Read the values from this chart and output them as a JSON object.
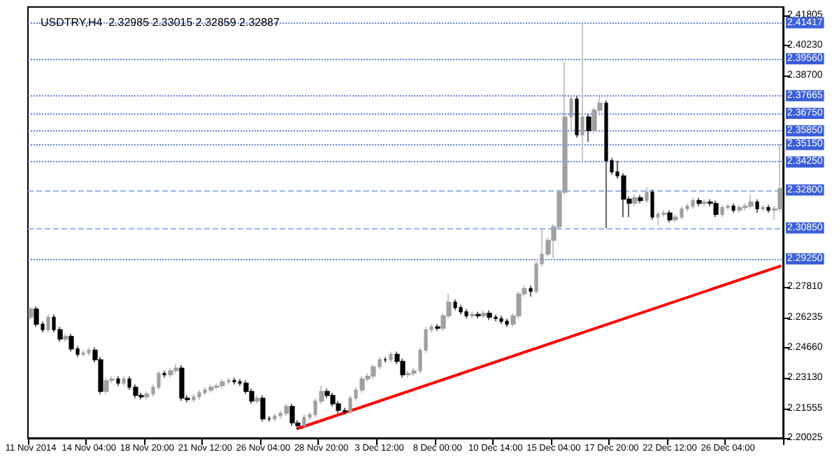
{
  "chart_data": {
    "type": "candlestick",
    "title": "USDTRY,H4  2.32985 2.33015 2.32859 2.32887",
    "categories": [
      "11 Nov 2014",
      null,
      null,
      null,
      null,
      null,
      null,
      null,
      null,
      null,
      "14 Nov 04:00",
      null,
      null,
      null,
      null,
      null,
      null,
      null,
      null,
      null,
      "18 Nov 20:00",
      null,
      null,
      null,
      null,
      null,
      null,
      null,
      null,
      null,
      "21 Nov 12:00",
      null,
      null,
      null,
      null,
      null,
      null,
      null,
      null,
      null,
      "26 Nov 04:00",
      null,
      null,
      null,
      null,
      null,
      null,
      null,
      null,
      null,
      "28 Nov 20:00",
      null,
      null,
      null,
      null,
      null,
      null,
      null,
      null,
      null,
      "3 Dec 12:00",
      null,
      null,
      null,
      null,
      null,
      null,
      null,
      null,
      null,
      "8 Dec 00:00",
      null,
      null,
      null,
      null,
      null,
      null,
      null,
      null,
      null,
      "10 Dec 14:00",
      null,
      null,
      null,
      null,
      null,
      null,
      null,
      null,
      null,
      "15 Dec 04:00",
      null,
      null,
      null,
      null,
      null,
      null,
      null,
      null,
      null,
      "17 Dec 20:00",
      null,
      null,
      null,
      null,
      null,
      null,
      null,
      null,
      null,
      "22 Dec 12:00",
      null,
      null,
      null,
      null,
      null,
      null,
      null,
      null,
      null,
      "26 Dec 04:00",
      null,
      null,
      null,
      null,
      null,
      null,
      null,
      null,
      null
    ],
    "series": [
      {
        "type": "candlestick",
        "colors": [
          "#a0a0a0",
          "#000000",
          "#000000",
          "#a0a0a0",
          "#000000",
          "#000000",
          "#a0a0a0",
          "#000000",
          "#000000",
          "#a0a0a0",
          "#a0a0a0",
          "#000000",
          "#000000",
          "#a0a0a0",
          "#a0a0a0",
          "#000000",
          "#a0a0a0",
          "#000000",
          "#000000",
          "#000000",
          "#a0a0a0",
          "#a0a0a0",
          "#a0a0a0",
          "#000000",
          "#a0a0a0",
          "#a0a0a0",
          "#000000",
          "#000000",
          "#a0a0a0",
          "#a0a0a0",
          "#a0a0a0",
          "#a0a0a0",
          "#a0a0a0",
          "#a0a0a0",
          "#a0a0a0",
          "#000000",
          "#000000",
          "#000000",
          "#000000",
          "#a0a0a0",
          "#000000",
          "#000000",
          "#a0a0a0",
          "#a0a0a0",
          "#a0a0a0",
          "#000000",
          "#000000",
          "#a0a0a0",
          "#a0a0a0",
          "#a0a0a0",
          "#a0a0a0",
          "#000000",
          "#000000",
          "#000000",
          "#000000",
          "#a0a0a0",
          "#a0a0a0",
          "#a0a0a0",
          "#a0a0a0",
          "#a0a0a0",
          "#a0a0a0",
          "#000000",
          "#a0a0a0",
          "#000000",
          "#000000",
          "#a0a0a0",
          "#a0a0a0",
          "#a0a0a0",
          "#a0a0a0",
          "#a0a0a0",
          "#000000",
          "#a0a0a0",
          "#a0a0a0",
          "#000000",
          "#000000",
          "#000000",
          "#a0a0a0",
          "#000000",
          "#a0a0a0",
          "#000000",
          "#000000",
          "#000000",
          "#000000",
          "#a0a0a0",
          "#a0a0a0",
          "#a0a0a0",
          "#000000",
          "#a0a0a0",
          "#a0a0a0",
          "#a0a0a0",
          "#a0a0a0",
          "#a0a0a0",
          "#a0a0a0",
          "#a0a0a0",
          "#000000",
          "#a0a0a0",
          "#000000",
          "#a0a0a0",
          "#a0a0a0",
          "#000000",
          "#000000",
          "#000000",
          "#000000",
          "#000000",
          "#a0a0a0",
          "#000000",
          "#a0a0a0",
          "#000000",
          "#a0a0a0",
          "#a0a0a0",
          "#000000",
          "#a0a0a0",
          "#a0a0a0",
          "#a0a0a0",
          "#a0a0a0",
          "#000000",
          "#a0a0a0",
          "#000000",
          "#000000",
          "#a0a0a0",
          "#a0a0a0",
          "#000000",
          "#a0a0a0",
          "#a0a0a0",
          "#a0a0a0",
          "#000000",
          "#a0a0a0",
          "#000000",
          "#a0a0a0",
          "#a0a0a0"
        ],
        "ohlc": [
          [
            2.2625,
            2.2681,
            2.2611,
            2.2667
          ],
          [
            2.2667,
            2.2681,
            2.2575,
            2.2589
          ],
          [
            2.2589,
            2.2603,
            2.2547,
            2.2561
          ],
          [
            2.2561,
            2.2639,
            2.2547,
            2.2625
          ],
          [
            2.2625,
            2.2639,
            2.2547,
            2.2561
          ],
          [
            2.2561,
            2.2575,
            2.2498,
            2.2512
          ],
          [
            2.2512,
            2.254,
            2.2498,
            2.2526
          ],
          [
            2.2526,
            2.254,
            2.2448,
            2.2462
          ],
          [
            2.2462,
            2.2476,
            2.242,
            2.2434
          ],
          [
            2.2434,
            2.2455,
            2.242,
            2.2441
          ],
          [
            2.2441,
            2.2469,
            2.2427,
            2.2455
          ],
          [
            2.2455,
            2.2469,
            2.2392,
            2.2406
          ],
          [
            2.2406,
            2.242,
            2.2229,
            2.2243
          ],
          [
            2.2243,
            2.2313,
            2.2229,
            2.2299
          ],
          [
            2.2299,
            2.2321,
            2.2285,
            2.2307
          ],
          [
            2.2307,
            2.2321,
            2.2271,
            2.2285
          ],
          [
            2.2285,
            2.2321,
            2.2271,
            2.2307
          ],
          [
            2.2307,
            2.2321,
            2.225,
            2.2264
          ],
          [
            2.2264,
            2.2278,
            2.2208,
            2.2222
          ],
          [
            2.2222,
            2.2236,
            2.2201,
            2.2215
          ],
          [
            2.2215,
            2.2243,
            2.2201,
            2.2229
          ],
          [
            2.2229,
            2.2278,
            2.2215,
            2.2264
          ],
          [
            2.2264,
            2.2349,
            2.225,
            2.2335
          ],
          [
            2.2335,
            2.2349,
            2.2314,
            2.2328
          ],
          [
            2.2328,
            2.2363,
            2.2314,
            2.2349
          ],
          [
            2.2349,
            2.2384,
            2.2335,
            2.2363
          ],
          [
            2.2363,
            2.2377,
            2.2194,
            2.2208
          ],
          [
            2.2208,
            2.2222,
            2.2186,
            2.22
          ],
          [
            2.22,
            2.2229,
            2.2186,
            2.2215
          ],
          [
            2.2215,
            2.225,
            2.2201,
            2.2236
          ],
          [
            2.2236,
            2.2264,
            2.2222,
            2.225
          ],
          [
            2.225,
            2.2278,
            2.2236,
            2.2264
          ],
          [
            2.2264,
            2.2285,
            2.225,
            2.2271
          ],
          [
            2.2271,
            2.2306,
            2.2257,
            2.2292
          ],
          [
            2.2292,
            2.2313,
            2.2278,
            2.2299
          ],
          [
            2.2299,
            2.2313,
            2.2278,
            2.2292
          ],
          [
            2.2292,
            2.2306,
            2.2271,
            2.2285
          ],
          [
            2.2285,
            2.2299,
            2.2229,
            2.2243
          ],
          [
            2.2243,
            2.2257,
            2.2179,
            2.2193
          ],
          [
            2.2193,
            2.2222,
            2.2179,
            2.2208
          ],
          [
            2.2208,
            2.2222,
            2.2087,
            2.2101
          ],
          [
            2.2101,
            2.2115,
            2.2087,
            2.2101
          ],
          [
            2.2101,
            2.213,
            2.2087,
            2.2116
          ],
          [
            2.2116,
            2.2144,
            2.2102,
            2.213
          ],
          [
            2.213,
            2.2179,
            2.2116,
            2.2165
          ],
          [
            2.2165,
            2.2179,
            2.2066,
            2.208
          ],
          [
            2.208,
            2.2094,
            2.2045,
            2.2066
          ],
          [
            2.2066,
            2.2123,
            2.2052,
            2.2109
          ],
          [
            2.2109,
            2.2137,
            2.2095,
            2.2123
          ],
          [
            2.2123,
            2.2207,
            2.2109,
            2.2193
          ],
          [
            2.2193,
            2.2271,
            2.2179,
            2.2243
          ],
          [
            2.2243,
            2.2257,
            2.2208,
            2.2222
          ],
          [
            2.2222,
            2.2236,
            2.2165,
            2.2179
          ],
          [
            2.2179,
            2.2193,
            2.213,
            2.2144
          ],
          [
            2.2144,
            2.2158,
            2.2123,
            2.2137
          ],
          [
            2.2137,
            2.2222,
            2.2123,
            2.2208
          ],
          [
            2.2208,
            2.2264,
            2.2194,
            2.225
          ],
          [
            2.225,
            2.2321,
            2.2236,
            2.2307
          ],
          [
            2.2307,
            2.2335,
            2.2293,
            2.2321
          ],
          [
            2.2321,
            2.2384,
            2.2307,
            2.237
          ],
          [
            2.237,
            2.242,
            2.2356,
            2.2406
          ],
          [
            2.2406,
            2.242,
            2.2392,
            2.2406
          ],
          [
            2.2406,
            2.2448,
            2.2392,
            2.2434
          ],
          [
            2.2434,
            2.2448,
            2.2384,
            2.2398
          ],
          [
            2.2398,
            2.2412,
            2.2314,
            2.2328
          ],
          [
            2.2328,
            2.2349,
            2.2314,
            2.2335
          ],
          [
            2.2335,
            2.2363,
            2.2321,
            2.2349
          ],
          [
            2.2349,
            2.2469,
            2.2335,
            2.2455
          ],
          [
            2.2455,
            2.2575,
            2.2441,
            2.2561
          ],
          [
            2.2561,
            2.2589,
            2.2547,
            2.2575
          ],
          [
            2.2575,
            2.2589,
            2.2554,
            2.2568
          ],
          [
            2.2568,
            2.2646,
            2.2554,
            2.2632
          ],
          [
            2.2632,
            2.2745,
            2.2618,
            2.2702
          ],
          [
            2.2702,
            2.2716,
            2.266,
            2.2674
          ],
          [
            2.2674,
            2.2688,
            2.2639,
            2.2653
          ],
          [
            2.2653,
            2.2667,
            2.2618,
            2.2632
          ],
          [
            2.2632,
            2.2653,
            2.2618,
            2.2639
          ],
          [
            2.2639,
            2.2653,
            2.2618,
            2.2632
          ],
          [
            2.2632,
            2.266,
            2.2618,
            2.2646
          ],
          [
            2.2646,
            2.266,
            2.2611,
            2.2625
          ],
          [
            2.2625,
            2.2639,
            2.2604,
            2.2618
          ],
          [
            2.2618,
            2.2632,
            2.259,
            2.2604
          ],
          [
            2.2604,
            2.2618,
            2.2575,
            2.2589
          ],
          [
            2.2589,
            2.2646,
            2.2575,
            2.2632
          ],
          [
            2.2632,
            2.2759,
            2.2618,
            2.2745
          ],
          [
            2.2745,
            2.2787,
            2.2731,
            2.2773
          ],
          [
            2.2773,
            2.2787,
            2.2731,
            2.2759
          ],
          [
            2.2759,
            2.2914,
            2.2745,
            2.29
          ],
          [
            2.29,
            2.3084,
            2.2886,
            2.295
          ],
          [
            2.295,
            2.3035,
            2.2936,
            2.3021
          ],
          [
            2.3021,
            2.3105,
            2.2929,
            2.3091
          ],
          [
            2.3091,
            2.3282,
            2.3077,
            2.3268
          ],
          [
            2.3268,
            2.394,
            2.3254,
            2.3657
          ],
          [
            2.3657,
            2.3763,
            2.3579,
            2.3749
          ],
          [
            2.3749,
            2.3763,
            2.3551,
            2.3565
          ],
          [
            2.3565,
            2.4138,
            2.3423,
            2.3657
          ],
          [
            2.3657,
            2.3671,
            2.3529,
            2.3586
          ],
          [
            2.3586,
            2.3706,
            2.3572,
            2.3692
          ],
          [
            2.3692,
            2.3763,
            2.3678,
            2.3728
          ],
          [
            2.3728,
            2.3742,
            2.3084,
            2.3431
          ],
          [
            2.3431,
            2.3445,
            2.336,
            2.3374
          ],
          [
            2.3374,
            2.3431,
            2.3339,
            2.3353
          ],
          [
            2.3353,
            2.3367,
            2.3141,
            2.3233
          ],
          [
            2.3233,
            2.3247,
            2.3141,
            2.3211
          ],
          [
            2.3211,
            2.3254,
            2.3197,
            2.324
          ],
          [
            2.324,
            2.3254,
            2.3212,
            2.3226
          ],
          [
            2.3226,
            2.3296,
            2.3212,
            2.3268
          ],
          [
            2.3268,
            2.3282,
            2.3127,
            2.3141
          ],
          [
            2.3141,
            2.3169,
            2.3098,
            2.3155
          ],
          [
            2.3155,
            2.3176,
            2.3141,
            2.3162
          ],
          [
            2.3162,
            2.3176,
            2.3113,
            2.3127
          ],
          [
            2.3127,
            2.3155,
            2.3113,
            2.3141
          ],
          [
            2.3141,
            2.3197,
            2.3127,
            2.3183
          ],
          [
            2.3183,
            2.3211,
            2.3169,
            2.3197
          ],
          [
            2.3197,
            2.324,
            2.3183,
            2.3226
          ],
          [
            2.3226,
            2.324,
            2.3197,
            2.3211
          ],
          [
            2.3211,
            2.3233,
            2.3197,
            2.3219
          ],
          [
            2.3219,
            2.3233,
            2.3197,
            2.3211
          ],
          [
            2.3211,
            2.3225,
            2.3141,
            2.3155
          ],
          [
            2.3155,
            2.3204,
            2.3141,
            2.319
          ],
          [
            2.319,
            2.3211,
            2.3176,
            2.3197
          ],
          [
            2.3197,
            2.3211,
            2.3162,
            2.3176
          ],
          [
            2.3176,
            2.3204,
            2.3162,
            2.319
          ],
          [
            2.319,
            2.3211,
            2.3176,
            2.3197
          ],
          [
            2.3197,
            2.3254,
            2.3183,
            2.3219
          ],
          [
            2.3219,
            2.3233,
            2.3162,
            2.3183
          ],
          [
            2.3183,
            2.3204,
            2.3169,
            2.319
          ],
          [
            2.319,
            2.3204,
            2.3162,
            2.3176
          ],
          [
            2.3176,
            2.3197,
            2.3127,
            2.3183
          ],
          [
            2.3183,
            2.3516,
            2.3169,
            2.3289
          ]
        ]
      },
      {
        "type": "line",
        "color": "#ff0000",
        "values": [
          null,
          null,
          null,
          null,
          null,
          null,
          null,
          null,
          null,
          null,
          null,
          null,
          null,
          null,
          null,
          null,
          null,
          null,
          null,
          null,
          null,
          null,
          null,
          null,
          null,
          null,
          null,
          null,
          null,
          null,
          null,
          null,
          null,
          null,
          null,
          null,
          null,
          null,
          null,
          null,
          null,
          null,
          null,
          null,
          null,
          null,
          2.2052,
          null,
          null,
          null,
          null,
          null,
          null,
          null,
          null,
          null,
          null,
          null,
          null,
          null,
          null,
          null,
          null,
          null,
          null,
          null,
          null,
          null,
          null,
          null,
          null,
          null,
          null,
          null,
          null,
          null,
          null,
          null,
          null,
          null,
          null,
          null,
          null,
          null,
          null,
          null,
          null,
          null,
          null,
          null,
          null,
          null,
          null,
          null,
          null,
          null,
          null,
          null,
          null,
          null,
          null,
          null,
          null,
          null,
          null,
          null,
          null,
          null,
          null,
          null,
          null,
          null,
          null,
          null,
          null,
          null,
          null,
          null,
          null,
          null,
          null,
          null,
          null,
          null,
          null,
          null,
          null,
          null,
          null,
          2.2888
        ]
      }
    ],
    "ylim": [
      2.20025,
      2.4223
    ],
    "yticks": [
      2.41805,
      {
        "value": 2.4023,
        "label": "2.40230"
      },
      {
        "value": 2.387,
        "label": "2.38700"
      },
      {
        "value": 2.2781,
        "label": "2.27810"
      },
      2.26235,
      {
        "value": 2.2466,
        "label": "2.24660"
      },
      {
        "value": 2.2313,
        "label": "2.23130"
      },
      2.21555,
      2.20025
    ],
    "ref_lines": [
      {
        "axis": "y",
        "value": 2.41417,
        "label": "2.41417",
        "color": "#6680e0",
        "line_style": "dotted"
      },
      {
        "axis": "y",
        "value": 2.3956,
        "label": "2.39560",
        "color": "#6680e0",
        "line_style": "dotted"
      },
      {
        "axis": "y",
        "value": 2.37665,
        "label": "2.37665",
        "color": "#6680e0",
        "line_style": "dotted"
      },
      {
        "axis": "y",
        "value": 2.3675,
        "label": "2.36750",
        "color": "#6680e0",
        "line_style": "dotted"
      },
      {
        "axis": "y",
        "value": 2.3585,
        "label": "2.35850",
        "color": "#6680e0",
        "line_style": "dotted"
      },
      {
        "axis": "y",
        "value": 2.3515,
        "label": "2.35150",
        "color": "#6680e0",
        "line_style": "dotted"
      },
      {
        "axis": "y",
        "value": 2.3425,
        "label": "2.34250",
        "color": "#6680e0",
        "line_style": "dotted"
      },
      {
        "axis": "y",
        "value": 2.328,
        "label": "2.32800",
        "color": "#99b4f0",
        "line_style": "dashed"
      },
      {
        "axis": "y",
        "value": 2.3085,
        "label": "2.30850",
        "color": "#99b4f0",
        "line_style": "dashed"
      },
      {
        "axis": "y",
        "value": 2.2925,
        "label": "2.29250",
        "color": "#6680e0",
        "line_style": "dotted"
      }
    ]
  }
}
